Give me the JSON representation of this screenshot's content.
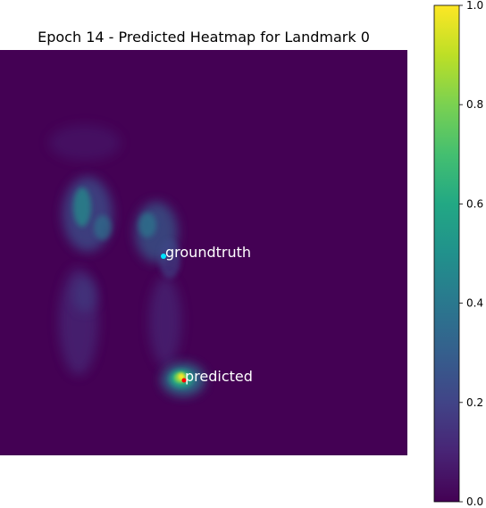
{
  "chart_data": {
    "type": "heatmap",
    "title": "Epoch 14 - Predicted Heatmap for Landmark 0",
    "colormap": "viridis",
    "axes_visible": false,
    "colorbar": {
      "range": [
        0.0,
        1.0
      ],
      "ticks": [
        0.0,
        0.2,
        0.4,
        0.6,
        0.8,
        1.0
      ],
      "tick_labels": [
        "0.0",
        "0.2",
        "0.4",
        "0.6",
        "0.8",
        "1.0"
      ]
    },
    "annotations": [
      {
        "label": "groundtruth",
        "color": "#00e5ff",
        "text_color": "#ffffff"
      },
      {
        "label": "predicted",
        "color": "#ff0000",
        "text_color": "#ffffff"
      }
    ]
  }
}
